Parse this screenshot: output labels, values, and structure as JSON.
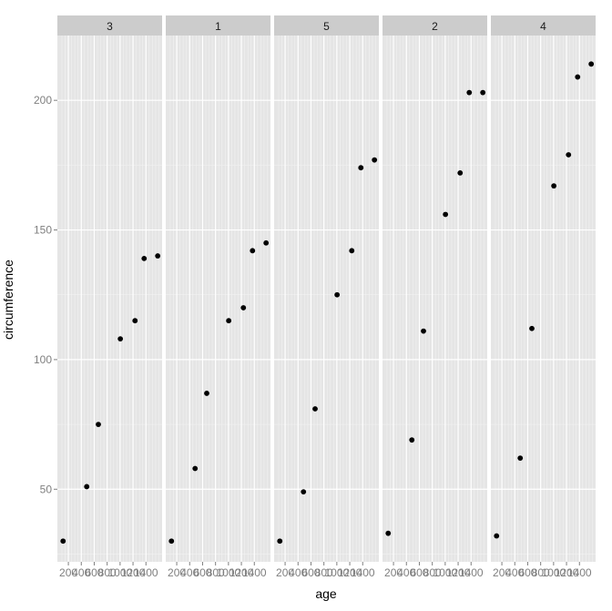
{
  "chart_data": {
    "type": "scatter",
    "title": "",
    "xlabel": "age",
    "ylabel": "circumference",
    "grid": true,
    "facet_by": "Tree",
    "ylim": [
      22,
      225
    ],
    "xlim": [
      30,
      1650
    ],
    "x_ticks": [
      200,
      400,
      600,
      800,
      1000,
      1200,
      1400
    ],
    "x_tick_labels": [
      "200",
      "400",
      "600",
      "800",
      "1000",
      "1200",
      "1400"
    ],
    "y_ticks": [
      50,
      100,
      150,
      200
    ],
    "y_tick_labels": [
      "50",
      "100",
      "150",
      "200"
    ],
    "x": [
      118,
      484,
      664,
      1004,
      1231,
      1372,
      1582
    ],
    "panels": [
      {
        "label": "3",
        "values": [
          30,
          51,
          75,
          108,
          115,
          139,
          140
        ]
      },
      {
        "label": "1",
        "values": [
          30,
          58,
          87,
          115,
          120,
          142,
          145
        ]
      },
      {
        "label": "5",
        "values": [
          30,
          49,
          81,
          125,
          142,
          174,
          177
        ]
      },
      {
        "label": "2",
        "values": [
          33,
          69,
          111,
          156,
          172,
          203,
          203
        ]
      },
      {
        "label": "4",
        "values": [
          32,
          62,
          112,
          167,
          179,
          209,
          214
        ]
      }
    ]
  },
  "colors": {
    "panel_bg": "#e5e5e5",
    "strip_bg": "#cccccc",
    "grid_major": "#ffffff",
    "grid_minor": "#f2f2f2",
    "point": "#000000",
    "tick_text": "#7f7f7f"
  }
}
